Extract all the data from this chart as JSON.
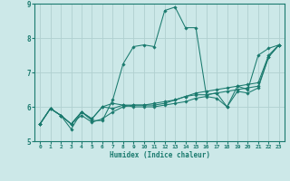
{
  "title": "",
  "xlabel": "Humidex (Indice chaleur)",
  "bg_color": "#cce8e8",
  "line_color": "#1a7a6e",
  "grid_color": "#b0d0d0",
  "xlim": [
    -0.5,
    23.5
  ],
  "ylim": [
    5.0,
    9.0
  ],
  "yticks": [
    5,
    6,
    7,
    8,
    9
  ],
  "xticks": [
    0,
    1,
    2,
    3,
    4,
    5,
    6,
    7,
    8,
    9,
    10,
    11,
    12,
    13,
    14,
    15,
    16,
    17,
    18,
    19,
    20,
    21,
    22,
    23
  ],
  "series": [
    [
      5.5,
      5.95,
      5.75,
      5.35,
      5.85,
      5.6,
      5.6,
      6.2,
      7.25,
      7.75,
      7.8,
      7.75,
      8.8,
      8.9,
      8.3,
      8.3,
      6.35,
      6.4,
      6.0,
      6.6,
      6.5,
      7.5,
      7.7,
      7.8
    ],
    [
      5.5,
      5.95,
      5.75,
      5.5,
      5.85,
      5.65,
      6.0,
      6.1,
      6.05,
      6.05,
      6.05,
      6.05,
      6.1,
      6.2,
      6.3,
      6.4,
      6.45,
      6.5,
      6.55,
      6.6,
      6.65,
      6.7,
      7.5,
      7.8
    ],
    [
      5.5,
      5.95,
      5.75,
      5.5,
      5.85,
      5.65,
      6.0,
      5.95,
      6.05,
      6.0,
      6.0,
      6.0,
      6.05,
      6.1,
      6.15,
      6.25,
      6.3,
      6.25,
      6.0,
      6.45,
      6.4,
      6.55,
      7.45,
      7.8
    ],
    [
      5.5,
      5.95,
      5.75,
      5.5,
      5.75,
      5.55,
      5.65,
      5.85,
      6.0,
      6.05,
      6.05,
      6.1,
      6.15,
      6.2,
      6.3,
      6.35,
      6.35,
      6.4,
      6.45,
      6.5,
      6.55,
      6.6,
      7.45,
      7.8
    ]
  ]
}
